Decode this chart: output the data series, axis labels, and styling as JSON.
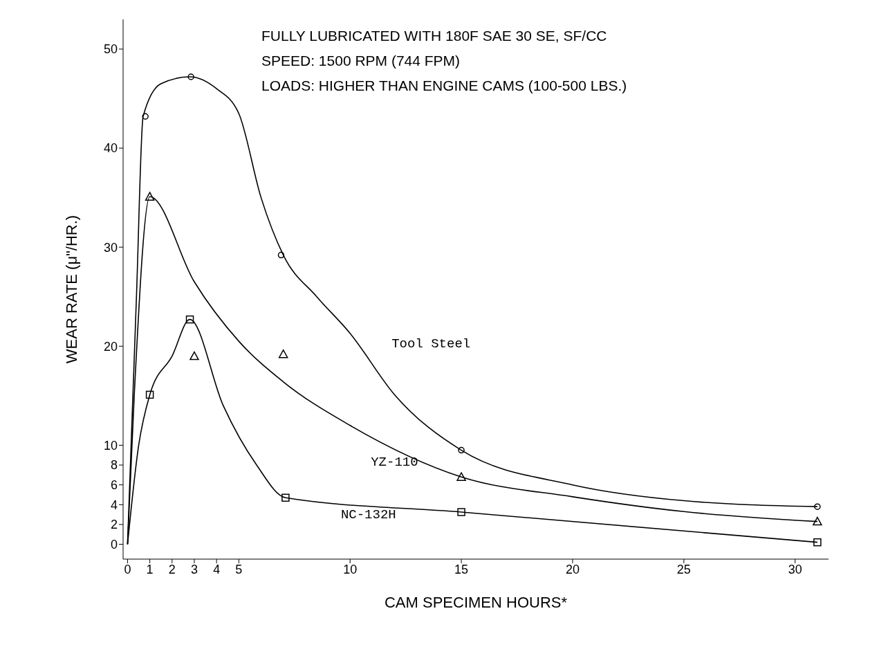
{
  "chart_data": {
    "type": "line",
    "title": "FULLY LUBRICATED WITH 180F SAE 30 SE, SF/CC",
    "xlabel": "CAM SPECIMEN HOURS*",
    "ylabel": "WEAR RATE (μ\"/HR.)",
    "annotations": [
      "SPEED:  1500 RPM (744 FPM)",
      "LOADS:  HIGHER THAN ENGINE CAMS (100-500 LBS.)"
    ],
    "xlim": [
      -0.2,
      31.5
    ],
    "xticks": [
      0,
      1,
      2,
      3,
      4,
      5,
      10,
      15,
      20,
      25,
      30
    ],
    "ylim": [
      -1.5,
      53
    ],
    "yticks": [
      0,
      2,
      4,
      6,
      8,
      10,
      20,
      30,
      40,
      50
    ],
    "line_style": "solid",
    "series": [
      {
        "name": "Tool Steel",
        "marker": "none",
        "color": "#000000",
        "x": [
          0,
          0.4,
          0.7,
          1.5,
          2.8,
          4,
          5,
          6,
          7,
          8.5,
          10,
          12,
          15,
          20,
          25,
          31
        ],
        "values": [
          0,
          25,
          43.2,
          46.5,
          47.2,
          46,
          43.5,
          35,
          29.2,
          25,
          21.3,
          15.1,
          9.5,
          6,
          4.4,
          3.8
        ]
      },
      {
        "type": "scatter",
        "marker": "circle",
        "color": "#000000",
        "x": [
          0.8,
          2.85,
          6.9,
          15,
          31
        ],
        "values": [
          43.2,
          47.2,
          29.2,
          9.5,
          3.8
        ]
      },
      {
        "name": "YZ-110",
        "marker": "none",
        "color": "#000000",
        "x": [
          0,
          0.3,
          1,
          3,
          5,
          7,
          10,
          15,
          20,
          25,
          31
        ],
        "values": [
          0,
          15,
          35.1,
          26.5,
          20.5,
          16.4,
          12,
          6.8,
          4.8,
          3.3,
          2.3
        ]
      },
      {
        "type": "scatter",
        "marker": "triangle",
        "color": "#000000",
        "x": [
          1,
          3,
          7,
          15,
          31
        ],
        "values": [
          35.1,
          19,
          19.2,
          6.8,
          2.3
        ]
      },
      {
        "name": "NC-132H",
        "marker": "none",
        "color": "#000000",
        "x": [
          0,
          0.5,
          1,
          2,
          2.8,
          4.3,
          5.8,
          7.1,
          15,
          31
        ],
        "values": [
          0,
          10,
          15.1,
          19,
          22.7,
          14,
          8,
          4.7,
          3.25,
          0.2
        ]
      },
      {
        "type": "scatter",
        "marker": "square",
        "color": "#000000",
        "x": [
          1,
          2.8,
          7.1,
          15,
          31
        ],
        "values": [
          15.1,
          22.7,
          4.7,
          3.25,
          0.2
        ]
      }
    ]
  }
}
